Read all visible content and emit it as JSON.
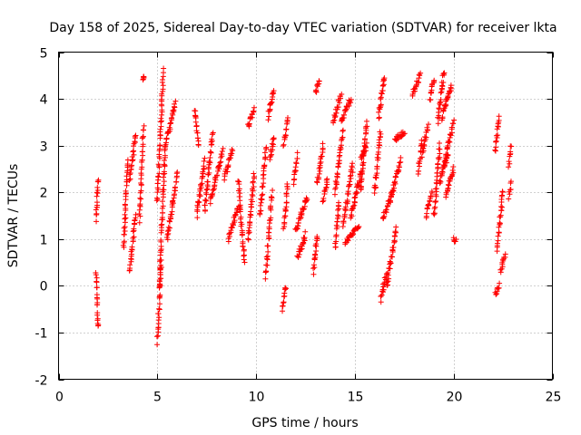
{
  "chart_data": {
    "type": "scatter",
    "title": "Day 158 of 2025, Sidereal Day-to-day VTEC variation (SDTVAR) for receiver lkta",
    "xlabel": "GPS time / hours",
    "ylabel": "SDTVAR / TECUs",
    "xlim": [
      0,
      25
    ],
    "ylim": [
      -2,
      5
    ],
    "xticks": [
      0,
      5,
      10,
      15,
      20,
      25
    ],
    "yticks": [
      -2,
      -1,
      0,
      1,
      2,
      3,
      4,
      5
    ],
    "xtick_labels": [
      "0",
      "5",
      "10",
      "15",
      "20",
      "25"
    ],
    "ytick_labels": [
      "-2",
      "-1",
      "0",
      "1",
      "2",
      "3",
      "4",
      "5"
    ],
    "grid": true,
    "marker": "plus",
    "color": "#ff0000",
    "segments": [
      {
        "x0": 1.9,
        "x1": 2.0,
        "y0": 1.4,
        "y1": 2.3
      },
      {
        "x0": 1.9,
        "x1": 2.0,
        "y0": 0.3,
        "y1": -0.9
      },
      {
        "x0": 3.3,
        "x1": 3.5,
        "y0": 0.8,
        "y1": 2.7
      },
      {
        "x0": 3.6,
        "x1": 3.9,
        "y0": 0.3,
        "y1": 1.5
      },
      {
        "x0": 3.6,
        "x1": 3.9,
        "y0": 2.3,
        "y1": 3.2
      },
      {
        "x0": 4.1,
        "x1": 4.3,
        "y0": 1.4,
        "y1": 3.4
      },
      {
        "x0": 4.3,
        "x1": 4.3,
        "y0": 4.45,
        "y1": 4.45
      },
      {
        "x0": 5.0,
        "x1": 5.2,
        "y0": -1.2,
        "y1": 0.5
      },
      {
        "x0": 5.0,
        "x1": 5.3,
        "y0": 1.8,
        "y1": 4.6
      },
      {
        "x0": 5.1,
        "x1": 5.4,
        "y0": 0.0,
        "y1": 3.0
      },
      {
        "x0": 5.4,
        "x1": 5.9,
        "y0": 3.0,
        "y1": 3.9
      },
      {
        "x0": 5.5,
        "x1": 6.0,
        "y0": 1.0,
        "y1": 2.4
      },
      {
        "x0": 6.9,
        "x1": 7.1,
        "y0": 3.8,
        "y1": 3.0
      },
      {
        "x0": 7.0,
        "x1": 7.4,
        "y0": 1.5,
        "y1": 2.7
      },
      {
        "x0": 7.4,
        "x1": 7.8,
        "y0": 1.6,
        "y1": 3.3
      },
      {
        "x0": 7.7,
        "x1": 8.3,
        "y0": 1.8,
        "y1": 2.9
      },
      {
        "x0": 8.4,
        "x1": 8.8,
        "y0": 2.3,
        "y1": 2.9
      },
      {
        "x0": 8.6,
        "x1": 9.1,
        "y0": 1.0,
        "y1": 1.7
      },
      {
        "x0": 9.1,
        "x1": 9.4,
        "y0": 2.3,
        "y1": 0.5
      },
      {
        "x0": 9.6,
        "x1": 9.9,
        "y0": 1.0,
        "y1": 2.4
      },
      {
        "x0": 9.6,
        "x1": 9.9,
        "y0": 3.4,
        "y1": 3.8
      },
      {
        "x0": 10.2,
        "x1": 10.5,
        "y0": 1.5,
        "y1": 3.0
      },
      {
        "x0": 10.5,
        "x1": 10.8,
        "y0": 0.2,
        "y1": 2.0
      },
      {
        "x0": 10.6,
        "x1": 10.9,
        "y0": 3.6,
        "y1": 4.2
      },
      {
        "x0": 10.7,
        "x1": 10.9,
        "y0": 2.7,
        "y1": 3.2
      },
      {
        "x0": 11.3,
        "x1": 11.5,
        "y0": -0.5,
        "y1": 0.0
      },
      {
        "x0": 11.4,
        "x1": 11.6,
        "y0": 1.2,
        "y1": 2.2
      },
      {
        "x0": 11.4,
        "x1": 11.6,
        "y0": 3.0,
        "y1": 3.6
      },
      {
        "x0": 11.9,
        "x1": 12.1,
        "y0": 2.2,
        "y1": 2.8
      },
      {
        "x0": 12.0,
        "x1": 12.6,
        "y0": 1.2,
        "y1": 1.9
      },
      {
        "x0": 12.1,
        "x1": 12.5,
        "y0": 0.6,
        "y1": 1.1
      },
      {
        "x0": 12.9,
        "x1": 13.1,
        "y0": 0.3,
        "y1": 1.1
      },
      {
        "x0": 13.0,
        "x1": 13.2,
        "y0": 4.1,
        "y1": 4.4
      },
      {
        "x0": 13.1,
        "x1": 13.4,
        "y0": 2.2,
        "y1": 3.0
      },
      {
        "x0": 13.4,
        "x1": 13.6,
        "y0": 1.8,
        "y1": 2.3
      },
      {
        "x0": 13.9,
        "x1": 14.3,
        "y0": 3.5,
        "y1": 4.1
      },
      {
        "x0": 14.0,
        "x1": 14.4,
        "y0": 2.0,
        "y1": 3.3
      },
      {
        "x0": 14.0,
        "x1": 14.2,
        "y0": 0.8,
        "y1": 1.8
      },
      {
        "x0": 14.3,
        "x1": 14.8,
        "y0": 3.5,
        "y1": 4.0
      },
      {
        "x0": 14.4,
        "x1": 14.9,
        "y0": 1.3,
        "y1": 2.6
      },
      {
        "x0": 14.5,
        "x1": 15.2,
        "y0": 0.9,
        "y1": 1.3
      },
      {
        "x0": 14.8,
        "x1": 15.3,
        "y0": 1.5,
        "y1": 2.4
      },
      {
        "x0": 15.3,
        "x1": 15.6,
        "y0": 2.0,
        "y1": 3.5
      },
      {
        "x0": 15.3,
        "x1": 15.6,
        "y0": 2.7,
        "y1": 3.0
      },
      {
        "x0": 16.0,
        "x1": 16.3,
        "y0": 2.0,
        "y1": 3.3
      },
      {
        "x0": 16.2,
        "x1": 16.5,
        "y0": 3.6,
        "y1": 4.5
      },
      {
        "x0": 16.3,
        "x1": 16.6,
        "y0": -0.3,
        "y1": 0.3
      },
      {
        "x0": 16.4,
        "x1": 16.9,
        "y0": 1.4,
        "y1": 2.0
      },
      {
        "x0": 16.6,
        "x1": 17.1,
        "y0": 0.0,
        "y1": 1.2
      },
      {
        "x0": 16.8,
        "x1": 17.3,
        "y0": 1.8,
        "y1": 2.7
      },
      {
        "x0": 17.0,
        "x1": 17.5,
        "y0": 3.1,
        "y1": 3.3
      },
      {
        "x0": 17.9,
        "x1": 18.3,
        "y0": 4.1,
        "y1": 4.5
      },
      {
        "x0": 18.2,
        "x1": 18.4,
        "y0": 2.4,
        "y1": 3.1
      },
      {
        "x0": 18.4,
        "x1": 18.7,
        "y0": 2.8,
        "y1": 3.4
      },
      {
        "x0": 18.6,
        "x1": 18.9,
        "y0": 1.5,
        "y1": 2.0
      },
      {
        "x0": 18.8,
        "x1": 19.0,
        "y0": 4.0,
        "y1": 4.4
      },
      {
        "x0": 19.0,
        "x1": 19.3,
        "y0": 1.5,
        "y1": 3.0
      },
      {
        "x0": 19.2,
        "x1": 19.5,
        "y0": 3.5,
        "y1": 4.6
      },
      {
        "x0": 19.3,
        "x1": 19.7,
        "y0": 2.2,
        "y1": 2.8
      },
      {
        "x0": 19.4,
        "x1": 19.9,
        "y0": 3.6,
        "y1": 4.3
      },
      {
        "x0": 19.5,
        "x1": 20.0,
        "y0": 2.6,
        "y1": 3.5
      },
      {
        "x0": 19.6,
        "x1": 20.0,
        "y0": 1.9,
        "y1": 2.5
      },
      {
        "x0": 20.0,
        "x1": 20.1,
        "y0": 1.0,
        "y1": 1.0
      },
      {
        "x0": 22.1,
        "x1": 22.3,
        "y0": 2.9,
        "y1": 3.6
      },
      {
        "x0": 22.1,
        "x1": 22.3,
        "y0": -0.2,
        "y1": 0.0
      },
      {
        "x0": 22.2,
        "x1": 22.5,
        "y0": 0.8,
        "y1": 2.0
      },
      {
        "x0": 22.4,
        "x1": 22.6,
        "y0": 0.3,
        "y1": 0.7
      },
      {
        "x0": 22.8,
        "x1": 22.9,
        "y0": 2.6,
        "y1": 3.0
      },
      {
        "x0": 22.8,
        "x1": 22.9,
        "y0": 1.9,
        "y1": 2.2
      }
    ]
  }
}
